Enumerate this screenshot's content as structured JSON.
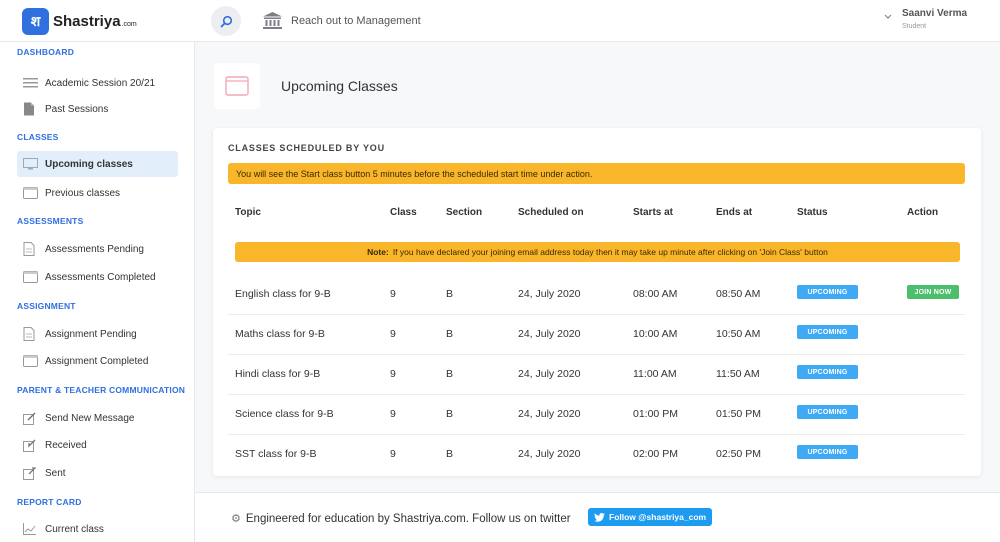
{
  "brand": {
    "logo_glyph": "श",
    "name": "Shastriya",
    "tld": ".com",
    "color": "#2f6fde"
  },
  "topbar": {
    "mgmt_label": "Reach out to Management"
  },
  "user": {
    "name": "Saanvi Verma",
    "role": "Student"
  },
  "sidebar": {
    "sections": [
      {
        "title": "DASHBOARD",
        "items": [
          {
            "label": "Academic Session 20/21",
            "icon": "list-icon"
          },
          {
            "label": "Past Sessions",
            "icon": "document-icon"
          }
        ]
      },
      {
        "title": "CLASSES",
        "items": [
          {
            "label": "Upcoming classes",
            "icon": "monitor-icon",
            "active": true
          },
          {
            "label": "Previous classes",
            "icon": "window-icon"
          }
        ]
      },
      {
        "title": "ASSESSMENTS",
        "items": [
          {
            "label": "Assessments Pending",
            "icon": "document-icon"
          },
          {
            "label": "Assessments Completed",
            "icon": "window-icon"
          }
        ]
      },
      {
        "title": "ASSIGNMENT",
        "items": [
          {
            "label": "Assignment Pending",
            "icon": "document-icon"
          },
          {
            "label": "Assignment Completed",
            "icon": "window-icon"
          }
        ]
      },
      {
        "title": "PARENT & TEACHER COMMUNICATION",
        "items": [
          {
            "label": "Send New Message",
            "icon": "edit-icon"
          },
          {
            "label": "Received",
            "icon": "inbox-icon"
          },
          {
            "label": "Sent",
            "icon": "send-icon"
          }
        ]
      },
      {
        "title": "REPORT CARD",
        "items": [
          {
            "label": "Current class",
            "icon": "chart-icon"
          }
        ]
      }
    ]
  },
  "page": {
    "title": "Upcoming Classes"
  },
  "card": {
    "title": "CLASSES SCHEDULED BY YOU",
    "warning": "You will see the Start class button 5 minutes before the scheduled start time under action.",
    "note_bold": "Note:",
    "note_text": "If you have declared your joining email address today then it may take up minute after clicking on 'Join Class' button",
    "columns": [
      "Topic",
      "Class",
      "Section",
      "Scheduled on",
      "Starts at",
      "Ends at",
      "Status",
      "Action"
    ],
    "rows": [
      {
        "topic": "English class for 9-B",
        "class": "9",
        "section": "B",
        "date": "24, July 2020",
        "start": "08:00 AM",
        "end": "08:50 AM",
        "status": "UPCOMING",
        "action": "JOIN NOW"
      },
      {
        "topic": "Maths class for 9-B",
        "class": "9",
        "section": "B",
        "date": "24, July 2020",
        "start": "10:00 AM",
        "end": "10:50 AM",
        "status": "UPCOMING",
        "action": ""
      },
      {
        "topic": "Hindi class for 9-B",
        "class": "9",
        "section": "B",
        "date": "24, July 2020",
        "start": "11:00 AM",
        "end": "11:50 AM",
        "status": "UPCOMING",
        "action": ""
      },
      {
        "topic": "Science class for 9-B",
        "class": "9",
        "section": "B",
        "date": "24, July 2020",
        "start": "01:00 PM",
        "end": "01:50 PM",
        "status": "UPCOMING",
        "action": ""
      },
      {
        "topic": "SST class for 9-B",
        "class": "9",
        "section": "B",
        "date": "24, July 2020",
        "start": "02:00 PM",
        "end": "02:50 PM",
        "status": "UPCOMING",
        "action": ""
      }
    ]
  },
  "footer": {
    "text": "Engineered for education by Shastriya.com. Follow us on twitter",
    "twitter_label": "Follow @shastriya_com"
  },
  "colors": {
    "accent": "#2f6fde",
    "warning": "#f9b62b",
    "upcoming": "#3fa9f5",
    "join": "#4cbe6c",
    "twitter": "#1d9bf0"
  }
}
